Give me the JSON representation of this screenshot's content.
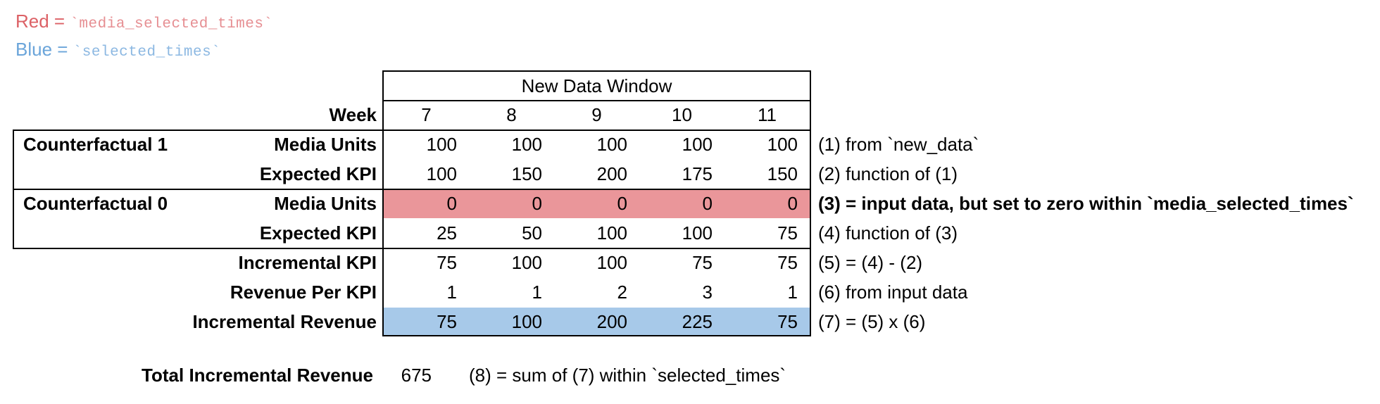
{
  "legend": {
    "red_prefix": "Red = ",
    "red_code": "`media_selected_times`",
    "blue_prefix": "Blue = ",
    "blue_code": "`selected_times`"
  },
  "table": {
    "header": "New Data Window",
    "week_label": "Week",
    "weeks": [
      "7",
      "8",
      "9",
      "10",
      "11"
    ],
    "rows": [
      {
        "group": "Counterfactual 1",
        "label": "Media Units",
        "values": [
          "100",
          "100",
          "100",
          "100",
          "100"
        ],
        "highlight": "none",
        "note": "(1) from `new_data`",
        "note_bold": false
      },
      {
        "group": "",
        "label": "Expected KPI",
        "values": [
          "100",
          "150",
          "200",
          "175",
          "150"
        ],
        "highlight": "none",
        "note": "(2) function of (1)",
        "note_bold": false
      },
      {
        "group": "Counterfactual 0",
        "label": "Media Units",
        "values": [
          "0",
          "0",
          "0",
          "0",
          "0"
        ],
        "highlight": "red",
        "note": "(3) = input data, but set to zero within `media_selected_times`",
        "note_bold": true
      },
      {
        "group": "",
        "label": "Expected KPI",
        "values": [
          "25",
          "50",
          "100",
          "100",
          "75"
        ],
        "highlight": "none",
        "note": "(4) function of (3)",
        "note_bold": false
      },
      {
        "group": "",
        "label": "Incremental KPI",
        "values": [
          "75",
          "100",
          "100",
          "75",
          "75"
        ],
        "highlight": "none",
        "note": "(5) = (4) - (2)",
        "note_bold": false
      },
      {
        "group": "",
        "label": "Revenue Per KPI",
        "values": [
          "1",
          "1",
          "2",
          "3",
          "1"
        ],
        "highlight": "none",
        "note": "(6) from input data",
        "note_bold": false
      },
      {
        "group": "",
        "label": "Incremental Revenue",
        "values": [
          "75",
          "100",
          "200",
          "225",
          "75"
        ],
        "highlight": "blue",
        "note": "(7) = (5) x (6)",
        "note_bold": false
      }
    ]
  },
  "total": {
    "label": "Total Incremental Revenue",
    "value": "675",
    "note": "(8) = sum of (7) within `selected_times`"
  },
  "colors": {
    "red_fill": "#ea969a",
    "blue_fill": "#a7c9e9",
    "legend_red": "#dc6166",
    "legend_red_code": "#e68e92",
    "legend_blue": "#6ba5da",
    "legend_blue_code": "#8cb8e2",
    "border": "#000000"
  }
}
